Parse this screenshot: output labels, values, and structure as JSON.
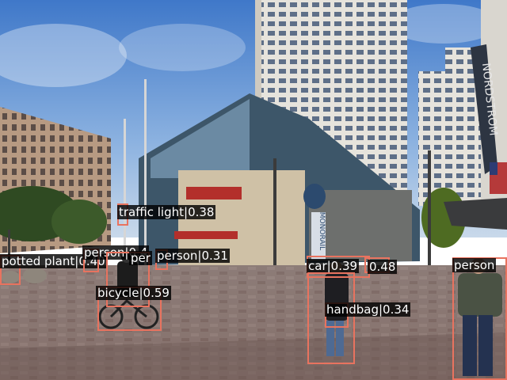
{
  "detections": [
    {
      "id": "potted-plant-box",
      "label": "potted plant",
      "score": "0.40"
    },
    {
      "id": "person-left-box",
      "label": "person",
      "score": "0.4"
    },
    {
      "id": "person-mid-box",
      "label": "per",
      "score": ""
    },
    {
      "id": "person-center-box",
      "label": "person",
      "score": "0.31"
    },
    {
      "id": "traffic-light-box",
      "label": "traffic light",
      "score": "0.38"
    },
    {
      "id": "bicycle-box",
      "label": "bicycle",
      "score": "0.59"
    },
    {
      "id": "car-box",
      "label": "car",
      "score": "0.39"
    },
    {
      "id": "car2-box",
      "label": "",
      "score": "0.48"
    },
    {
      "id": "handbag-box",
      "label": "handbag",
      "score": "0.34"
    },
    {
      "id": "person-right-box",
      "label": "person",
      "score": ""
    }
  ],
  "signs": {
    "nordstrom": "NORDSTROM",
    "monorail": "MONORAIL"
  },
  "colors": {
    "box": "#e8735f",
    "label_bg": "#000000",
    "label_text": "#ffffff"
  }
}
